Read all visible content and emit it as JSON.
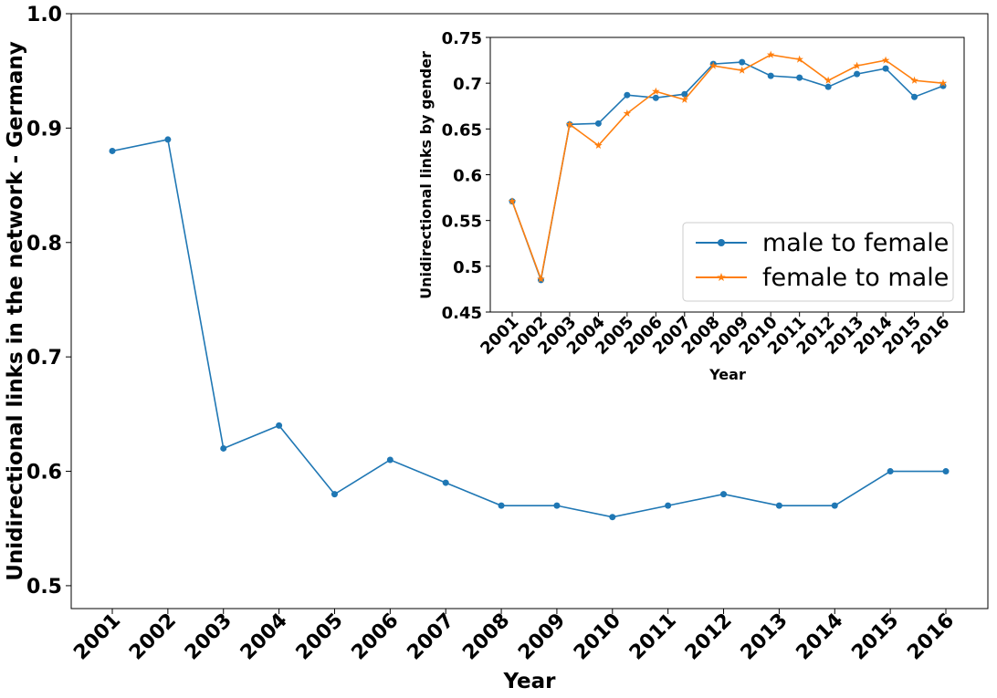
{
  "chart_data": [
    {
      "type": "line",
      "xlabel": "Year",
      "ylabel": "Unidirectional links in the network - Germany",
      "ylim": [
        0.48,
        1.0
      ],
      "yticks": [
        "0.5",
        "0.6",
        "0.7",
        "0.8",
        "0.9",
        "1.0"
      ],
      "x": [
        "2001",
        "2002",
        "2003",
        "2004",
        "2005",
        "2006",
        "2007",
        "2008",
        "2009",
        "2010",
        "2011",
        "2012",
        "2013",
        "2014",
        "2015",
        "2016"
      ],
      "series": [
        {
          "color": "#1f77b4",
          "marker": "circle",
          "values": [
            0.88,
            0.89,
            0.62,
            0.64,
            0.58,
            0.61,
            0.59,
            0.57,
            0.57,
            0.56,
            0.57,
            0.58,
            0.57,
            0.57,
            0.6,
            0.6
          ]
        }
      ],
      "grid": false
    },
    {
      "type": "line",
      "xlabel": "Year",
      "ylabel": "Unidirectional links by gender",
      "ylim": [
        0.45,
        0.75
      ],
      "yticks": [
        "0.45",
        "0.5",
        "0.55",
        "0.6",
        "0.65",
        "0.7",
        "0.75"
      ],
      "x": [
        "2001",
        "2002",
        "2003",
        "2004",
        "2005",
        "2006",
        "2007",
        "2008",
        "2009",
        "2010",
        "2011",
        "2012",
        "2013",
        "2014",
        "2015",
        "2016"
      ],
      "series": [
        {
          "name": "male to female",
          "color": "#1f77b4",
          "marker": "circle",
          "values": [
            0.571,
            0.485,
            0.655,
            0.656,
            0.687,
            0.684,
            0.688,
            0.721,
            0.723,
            0.708,
            0.706,
            0.696,
            0.71,
            0.716,
            0.685,
            0.697
          ]
        },
        {
          "name": "female to male",
          "color": "#ff7f0e",
          "marker": "star",
          "values": [
            0.571,
            0.486,
            0.655,
            0.632,
            0.667,
            0.691,
            0.682,
            0.719,
            0.714,
            0.731,
            0.726,
            0.703,
            0.719,
            0.725,
            0.703,
            0.7
          ]
        }
      ],
      "legend_position": "lower-right",
      "grid": false
    }
  ]
}
